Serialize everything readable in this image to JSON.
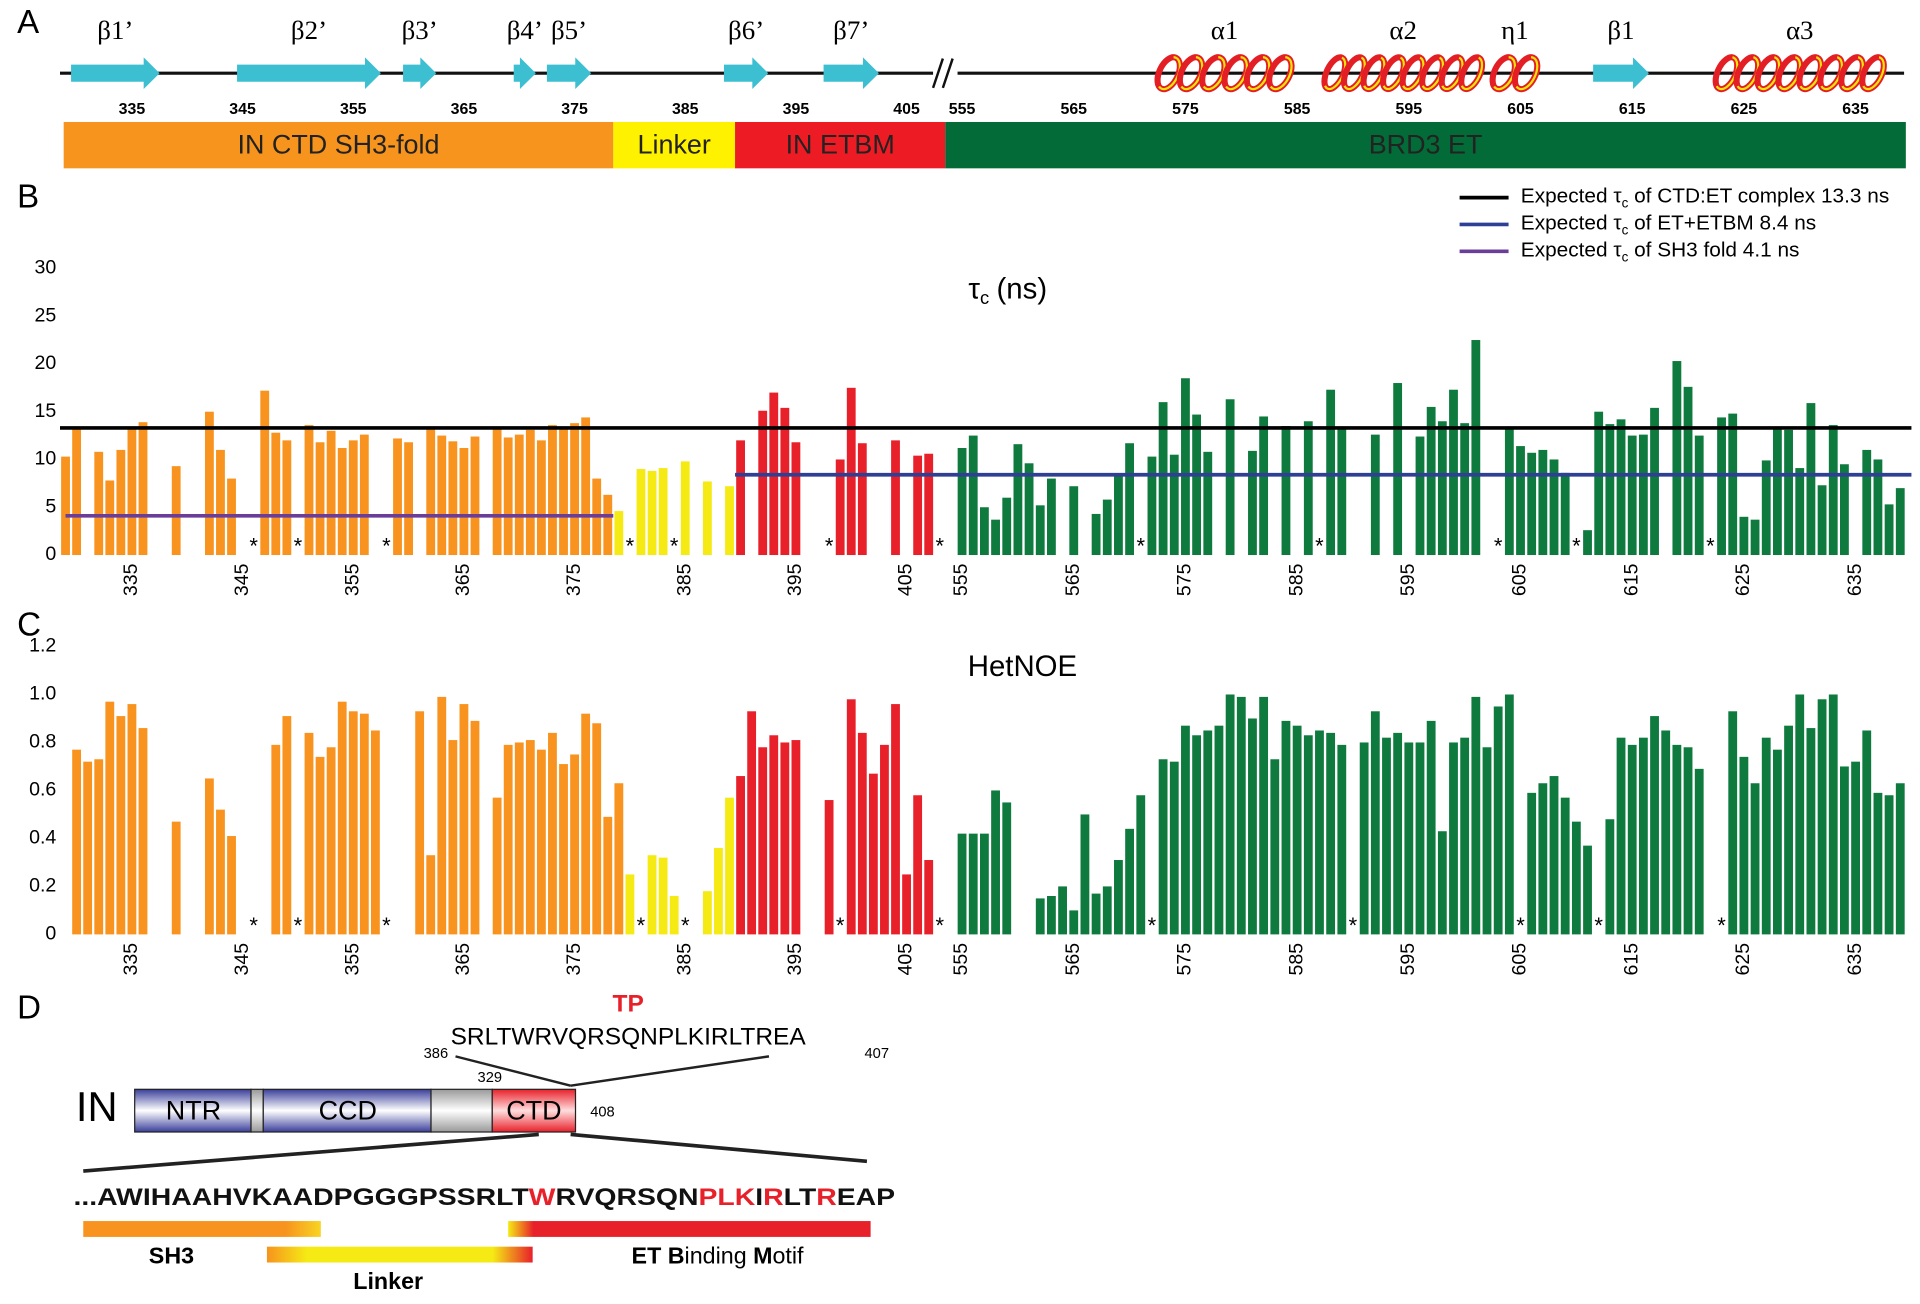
{
  "panel_labels": [
    "A",
    "B",
    "C",
    "D"
  ],
  "topology": {
    "elements": [
      {
        "label": "β1’",
        "kind": "strand",
        "start": 330,
        "end": 337
      },
      {
        "label": "β2’",
        "kind": "strand",
        "start": 345,
        "end": 357
      },
      {
        "label": "β3’",
        "kind": "strand",
        "start": 360,
        "end": 362
      },
      {
        "label": "β4’",
        "kind": "strand",
        "start": 370,
        "end": 371
      },
      {
        "label": "β5’",
        "kind": "strand",
        "start": 373,
        "end": 376
      },
      {
        "label": "β6’",
        "kind": "strand",
        "start": 389,
        "end": 392
      },
      {
        "label": "β7’",
        "kind": "strand",
        "start": 398,
        "end": 402
      },
      {
        "label": "α1",
        "kind": "helix",
        "start": 573,
        "end": 584
      },
      {
        "label": "α2",
        "kind": "helix",
        "start": 588,
        "end": 601
      },
      {
        "label": "η1",
        "kind": "helix",
        "start": 603,
        "end": 606
      },
      {
        "label": "β1",
        "kind": "strand",
        "start": 612,
        "end": 616
      },
      {
        "label": "α3",
        "kind": "helix",
        "start": 623,
        "end": 637
      }
    ],
    "ticks": [
      335,
      345,
      355,
      365,
      375,
      385,
      395,
      405,
      555,
      565,
      575,
      585,
      595,
      605,
      615,
      625,
      635
    ],
    "domains": [
      {
        "label": "IN CTD SH3-fold",
        "color": "#f7941d",
        "start": 329,
        "end": 378
      },
      {
        "label": "Linker",
        "color": "#fff200",
        "start": 379,
        "end": 389
      },
      {
        "label": "IN ETBM",
        "color": "#ed1c24",
        "start": 390,
        "end": 408
      },
      {
        "label": "BRD3 ET",
        "color": "#036b38",
        "start": 554,
        "end": 639
      }
    ]
  },
  "chart_data": [
    {
      "type": "bar",
      "title": {
        "symbol": "τ",
        "subscript": "c",
        "unit": "(ns)"
      },
      "xlim": [
        328.5,
        640
      ],
      "xbreak": [
        408.5,
        553.5
      ],
      "xticks": [
        335,
        345,
        355,
        365,
        375,
        385,
        395,
        405,
        555,
        565,
        575,
        585,
        595,
        605,
        615,
        625,
        635
      ],
      "ylim": [
        0,
        30
      ],
      "yticks": [
        0,
        5,
        10,
        15,
        20,
        25,
        30
      ],
      "series": [
        {
          "color": "#f7931e",
          "x": [
            329,
            330,
            332,
            333,
            334,
            335,
            336,
            339,
            342,
            343,
            344,
            347,
            348,
            349,
            351,
            352,
            353,
            354,
            355,
            356,
            359,
            360,
            362,
            363,
            364,
            365,
            366,
            368,
            369,
            370,
            371,
            372,
            373,
            374,
            375,
            376,
            377,
            378
          ],
          "values": [
            10.3,
            13.2,
            10.8,
            7.8,
            11,
            13.4,
            13.9,
            9.3,
            15,
            11,
            8,
            17.2,
            12.8,
            12,
            13.6,
            11.8,
            13,
            11.2,
            12,
            12.6,
            12.2,
            11.8,
            13.2,
            12.5,
            11.9,
            11.2,
            12.4,
            13.2,
            12.3,
            12.6,
            13.1,
            12,
            13.6,
            13.4,
            13.8,
            14.4,
            8,
            6.3
          ]
        },
        {
          "color": "#f5ea14",
          "x": [
            379,
            381,
            382,
            383,
            385,
            387,
            389
          ],
          "values": [
            4.6,
            9,
            8.8,
            9.1,
            9.8,
            7.7,
            7.2
          ]
        },
        {
          "color": "#e8202a",
          "x": [
            390,
            392,
            393,
            394,
            395,
            399,
            400,
            401,
            404,
            406,
            407
          ],
          "values": [
            12,
            15.1,
            17,
            15.4,
            11.8,
            10,
            17.5,
            11.7,
            12,
            10.4,
            10.6
          ]
        },
        {
          "color": "#0e7a3e",
          "x": [
            555,
            556,
            557,
            558,
            559,
            560,
            561,
            562,
            563,
            565,
            567,
            568,
            569,
            570,
            572,
            573,
            574,
            575,
            576,
            577,
            579,
            581,
            582,
            584,
            586,
            588,
            589,
            592,
            594,
            596,
            597,
            598,
            599,
            600,
            601,
            604,
            605,
            606,
            607,
            608,
            609,
            611,
            612,
            613,
            614,
            615,
            616,
            617,
            619,
            620,
            621,
            623,
            624,
            625,
            626,
            627,
            628,
            629,
            630,
            631,
            632,
            633,
            634,
            636,
            637,
            638,
            639
          ],
          "values": [
            11.2,
            12.5,
            5,
            3.7,
            6,
            11.6,
            9.6,
            5.2,
            8,
            7.2,
            4.3,
            5.8,
            8.5,
            11.7,
            10.3,
            16,
            10.5,
            18.5,
            14.7,
            10.8,
            16.3,
            10.9,
            14.5,
            13.5,
            14,
            17.3,
            13.2,
            12.6,
            18,
            12.4,
            15.5,
            14,
            17.3,
            13.8,
            22.5,
            13.4,
            11.4,
            10.7,
            11,
            10,
            8.6,
            2.6,
            15,
            13.7,
            14.2,
            12.5,
            12.6,
            15.4,
            20.3,
            17.6,
            12.5,
            14.4,
            14.8,
            4,
            3.7,
            9.9,
            13.2,
            13.1,
            9.1,
            15.9,
            7.3,
            13.6,
            9.5,
            11,
            10,
            5.3,
            7
          ]
        }
      ],
      "reference_lines": [
        {
          "label": {
            "prefix": "Expected τ",
            "subscript": "c",
            "suffix": " of CTD:ET complex 13.3 ns"
          },
          "value": 13.3,
          "color": "#000000",
          "from": 328.5,
          "to": 640
        },
        {
          "label": {
            "prefix": "Expected τ",
            "subscript": "c",
            "suffix": " of ET+ETBM 8.4 ns"
          },
          "value": 8.4,
          "color": "#2e3f94",
          "from": 389.5,
          "to": 640
        },
        {
          "label": {
            "prefix": "Expected τ",
            "subscript": "c",
            "suffix": " of SH3 fold 4.1 ns"
          },
          "value": 4.1,
          "color": "#6a3d9a",
          "from": 329,
          "to": 378.5
        }
      ],
      "markers": {
        "label": "*",
        "x": [
          346,
          350,
          358,
          380,
          384,
          398,
          408,
          571,
          587,
          603,
          610,
          622
        ]
      }
    },
    {
      "type": "bar",
      "title": {
        "text": "HetNOE"
      },
      "xlim": [
        328.5,
        640
      ],
      "xbreak": [
        408.5,
        553.5
      ],
      "xticks": [
        335,
        345,
        355,
        365,
        375,
        385,
        395,
        405,
        555,
        565,
        575,
        585,
        595,
        605,
        615,
        625,
        635
      ],
      "ylim": [
        0,
        1.2
      ],
      "yticks": [
        0,
        0.2,
        0.4,
        0.6,
        0.8,
        {
          "value": 1,
          "label": "1.0"
        },
        1.2
      ],
      "series": [
        {
          "color": "#f7931e",
          "x": [
            330,
            331,
            332,
            333,
            334,
            335,
            336,
            339,
            342,
            343,
            344,
            348,
            349,
            351,
            352,
            353,
            354,
            355,
            356,
            357,
            361,
            362,
            363,
            364,
            365,
            366,
            368,
            369,
            370,
            371,
            372,
            373,
            374,
            375,
            376,
            377,
            378,
            379
          ],
          "values": [
            0.77,
            0.72,
            0.73,
            0.97,
            0.91,
            0.96,
            0.86,
            0.47,
            0.65,
            0.52,
            0.41,
            0.79,
            0.91,
            0.84,
            0.74,
            0.78,
            0.97,
            0.93,
            0.92,
            0.85,
            0.93,
            0.33,
            0.99,
            0.81,
            0.96,
            0.89,
            0.57,
            0.79,
            0.8,
            0.81,
            0.77,
            0.84,
            0.71,
            0.75,
            0.92,
            0.88,
            0.49,
            0.63
          ]
        },
        {
          "color": "#f5ea14",
          "x": [
            380,
            382,
            383,
            384,
            387,
            388,
            389
          ],
          "values": [
            0.25,
            0.33,
            0.32,
            0.16,
            0.18,
            0.36,
            0.57
          ]
        },
        {
          "color": "#e8202a",
          "x": [
            390,
            391,
            392,
            393,
            394,
            395,
            398,
            400,
            401,
            402,
            403,
            404,
            405,
            406,
            407
          ],
          "values": [
            0.66,
            0.93,
            0.78,
            0.83,
            0.8,
            0.81,
            0.56,
            0.98,
            0.84,
            0.67,
            0.79,
            0.96,
            0.25,
            0.58,
            0.31
          ]
        },
        {
          "color": "#0e7a3e",
          "x": [
            555,
            556,
            557,
            558,
            559,
            562,
            563,
            564,
            565,
            566,
            567,
            568,
            569,
            570,
            571,
            573,
            574,
            575,
            576,
            577,
            578,
            579,
            580,
            581,
            582,
            583,
            584,
            585,
            586,
            587,
            588,
            589,
            591,
            592,
            593,
            594,
            595,
            596,
            597,
            598,
            599,
            600,
            601,
            602,
            603,
            604,
            606,
            607,
            608,
            609,
            610,
            611,
            613,
            614,
            615,
            616,
            617,
            618,
            619,
            620,
            621,
            624,
            625,
            626,
            627,
            628,
            629,
            630,
            631,
            632,
            633,
            634,
            635,
            636,
            637,
            638,
            639
          ],
          "values": [
            0.42,
            0.42,
            0.42,
            0.6,
            0.55,
            0.15,
            0.16,
            0.2,
            0.1,
            0.5,
            0.17,
            0.2,
            0.31,
            0.44,
            0.58,
            0.73,
            0.72,
            0.87,
            0.83,
            0.85,
            0.87,
            1,
            0.99,
            0.9,
            0.99,
            0.73,
            0.89,
            0.87,
            0.83,
            0.85,
            0.84,
            0.79,
            0.8,
            0.93,
            0.82,
            0.84,
            0.8,
            0.8,
            0.89,
            0.43,
            0.8,
            0.82,
            0.99,
            0.78,
            0.95,
            1,
            0.59,
            0.63,
            0.66,
            0.57,
            0.47,
            0.37,
            0.48,
            0.82,
            0.79,
            0.82,
            0.91,
            0.85,
            0.79,
            0.78,
            0.69,
            0.93,
            0.74,
            0.63,
            0.82,
            0.77,
            0.87,
            1,
            0.86,
            0.98,
            1,
            0.7,
            0.72,
            0.85,
            0.59,
            0.58,
            0.63
          ]
        }
      ],
      "markers": {
        "label": "*",
        "x": [
          346,
          350,
          358,
          381,
          385,
          399,
          408,
          572,
          590,
          605,
          612,
          623
        ]
      }
    }
  ],
  "diagram": {
    "motif_label": "TP",
    "motif_start": 386,
    "motif_sequence": "SRLTWRVQRSQNPLKIRLTREA",
    "motif_end": 407,
    "protein": "IN",
    "domains": [
      "NTR",
      "CCD",
      "CTD"
    ],
    "ctd_start": 329,
    "ctd_end": 408,
    "highlight_color": "#e8202a",
    "sequence": [
      {
        "text": "...AWIHAAHVKAADPGGGPSSRLT",
        "highlight": false
      },
      {
        "text": "W",
        "highlight": true
      },
      {
        "text": "RVQRSQN",
        "highlight": false
      },
      {
        "text": "PLK",
        "highlight": true
      },
      {
        "text": "I",
        "highlight": false
      },
      {
        "text": "R",
        "highlight": true
      },
      {
        "text": "LT",
        "highlight": false
      },
      {
        "text": "R",
        "highlight": true
      },
      {
        "text": "EAP",
        "highlight": false
      }
    ],
    "regions": [
      [
        {
          "text": "SH3",
          "bold": true
        }
      ],
      [
        {
          "text": "Linker",
          "bold": true
        }
      ],
      [
        {
          "text": "ET B",
          "bold": true
        },
        {
          "text": "inding ",
          "bold": false
        },
        {
          "text": "M",
          "bold": true
        },
        {
          "text": "otif",
          "bold": false
        }
      ]
    ]
  }
}
